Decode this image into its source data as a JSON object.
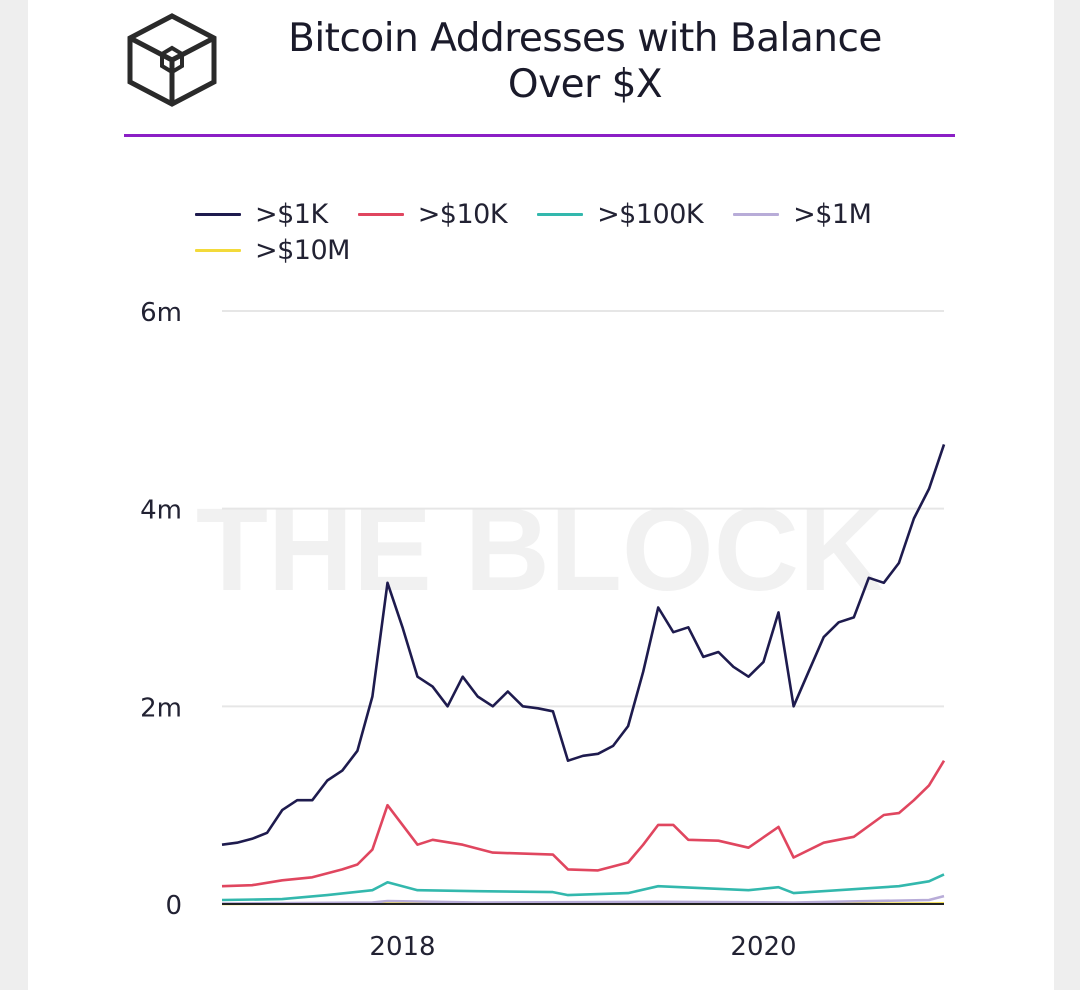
{
  "page": {
    "logo": "the-block-cube-logo",
    "title_line1": "Bitcoin Addresses with Balance",
    "title_line2": "Over $X",
    "watermark": "THE BLOCK",
    "colors": {
      "accent_rule": "#8b1fc5",
      "background": "#ffffff"
    }
  },
  "chart_data": {
    "type": "line",
    "title": "Bitcoin Addresses with Balance Over $X",
    "xlabel": "",
    "ylabel": "",
    "x_range": [
      "2017-01",
      "2021-01"
    ],
    "ylim": [
      0,
      6000000
    ],
    "y_ticks": [
      {
        "value": 0,
        "label": "0"
      },
      {
        "value": 2000000,
        "label": "2m"
      },
      {
        "value": 4000000,
        "label": "4m"
      },
      {
        "value": 6000000,
        "label": "6m"
      }
    ],
    "x_ticks": [
      {
        "value": "2018-01",
        "label": "2018"
      },
      {
        "value": "2020-01",
        "label": "2020"
      }
    ],
    "grid": "horizontal",
    "legend_position": "top-left",
    "series": [
      {
        "name": ">$1K",
        "color": "#1e1b4e",
        "points": [
          [
            "2017-01",
            600000
          ],
          [
            "2017-02",
            620000
          ],
          [
            "2017-03",
            660000
          ],
          [
            "2017-04",
            720000
          ],
          [
            "2017-05",
            950000
          ],
          [
            "2017-06",
            1050000
          ],
          [
            "2017-07",
            1050000
          ],
          [
            "2017-08",
            1250000
          ],
          [
            "2017-09",
            1350000
          ],
          [
            "2017-10",
            1550000
          ],
          [
            "2017-11",
            2100000
          ],
          [
            "2017-12",
            3250000
          ],
          [
            "2018-01",
            2800000
          ],
          [
            "2018-02",
            2300000
          ],
          [
            "2018-03",
            2200000
          ],
          [
            "2018-04",
            2000000
          ],
          [
            "2018-05",
            2300000
          ],
          [
            "2018-06",
            2100000
          ],
          [
            "2018-07",
            2000000
          ],
          [
            "2018-08",
            2150000
          ],
          [
            "2018-09",
            2000000
          ],
          [
            "2018-10",
            1980000
          ],
          [
            "2018-11",
            1950000
          ],
          [
            "2018-12",
            1450000
          ],
          [
            "2019-01",
            1500000
          ],
          [
            "2019-02",
            1520000
          ],
          [
            "2019-03",
            1600000
          ],
          [
            "2019-04",
            1800000
          ],
          [
            "2019-05",
            2350000
          ],
          [
            "2019-06",
            3000000
          ],
          [
            "2019-07",
            2750000
          ],
          [
            "2019-08",
            2800000
          ],
          [
            "2019-09",
            2500000
          ],
          [
            "2019-10",
            2550000
          ],
          [
            "2019-11",
            2400000
          ],
          [
            "2019-12",
            2300000
          ],
          [
            "2020-01",
            2450000
          ],
          [
            "2020-02",
            2950000
          ],
          [
            "2020-03",
            2000000
          ],
          [
            "2020-04",
            2350000
          ],
          [
            "2020-05",
            2700000
          ],
          [
            "2020-06",
            2850000
          ],
          [
            "2020-07",
            2900000
          ],
          [
            "2020-08",
            3300000
          ],
          [
            "2020-09",
            3250000
          ],
          [
            "2020-10",
            3450000
          ],
          [
            "2020-11",
            3900000
          ],
          [
            "2020-12",
            4200000
          ],
          [
            "2021-01",
            4650000
          ]
        ]
      },
      {
        "name": ">$10K",
        "color": "#e0465f",
        "points": [
          [
            "2017-01",
            180000
          ],
          [
            "2017-03",
            190000
          ],
          [
            "2017-05",
            240000
          ],
          [
            "2017-07",
            270000
          ],
          [
            "2017-09",
            350000
          ],
          [
            "2017-10",
            400000
          ],
          [
            "2017-11",
            550000
          ],
          [
            "2017-12",
            1000000
          ],
          [
            "2018-01",
            800000
          ],
          [
            "2018-02",
            600000
          ],
          [
            "2018-03",
            650000
          ],
          [
            "2018-05",
            600000
          ],
          [
            "2018-07",
            520000
          ],
          [
            "2018-09",
            510000
          ],
          [
            "2018-11",
            500000
          ],
          [
            "2018-12",
            350000
          ],
          [
            "2019-02",
            340000
          ],
          [
            "2019-04",
            420000
          ],
          [
            "2019-05",
            600000
          ],
          [
            "2019-06",
            800000
          ],
          [
            "2019-07",
            800000
          ],
          [
            "2019-08",
            650000
          ],
          [
            "2019-10",
            640000
          ],
          [
            "2019-12",
            570000
          ],
          [
            "2020-02",
            780000
          ],
          [
            "2020-03",
            470000
          ],
          [
            "2020-05",
            620000
          ],
          [
            "2020-07",
            680000
          ],
          [
            "2020-09",
            900000
          ],
          [
            "2020-10",
            920000
          ],
          [
            "2020-11",
            1050000
          ],
          [
            "2020-12",
            1200000
          ],
          [
            "2021-01",
            1450000
          ]
        ]
      },
      {
        "name": ">$100K",
        "color": "#33b8ad",
        "points": [
          [
            "2017-01",
            40000
          ],
          [
            "2017-05",
            50000
          ],
          [
            "2017-08",
            90000
          ],
          [
            "2017-11",
            140000
          ],
          [
            "2017-12",
            220000
          ],
          [
            "2018-02",
            140000
          ],
          [
            "2018-06",
            130000
          ],
          [
            "2018-11",
            120000
          ],
          [
            "2018-12",
            90000
          ],
          [
            "2019-04",
            110000
          ],
          [
            "2019-06",
            180000
          ],
          [
            "2019-09",
            160000
          ],
          [
            "2019-12",
            140000
          ],
          [
            "2020-02",
            170000
          ],
          [
            "2020-03",
            110000
          ],
          [
            "2020-07",
            150000
          ],
          [
            "2020-10",
            180000
          ],
          [
            "2020-12",
            230000
          ],
          [
            "2021-01",
            300000
          ]
        ]
      },
      {
        "name": ">$1M",
        "color": "#b8acd8",
        "points": [
          [
            "2017-01",
            5000
          ],
          [
            "2017-11",
            15000
          ],
          [
            "2017-12",
            30000
          ],
          [
            "2018-06",
            15000
          ],
          [
            "2019-06",
            22000
          ],
          [
            "2020-03",
            15000
          ],
          [
            "2020-12",
            40000
          ],
          [
            "2021-01",
            80000
          ]
        ]
      },
      {
        "name": ">$10M",
        "color": "#f3da3a",
        "points": [
          [
            "2017-01",
            1000
          ],
          [
            "2017-12",
            3000
          ],
          [
            "2019-06",
            2500
          ],
          [
            "2020-12",
            4000
          ],
          [
            "2021-01",
            6000
          ]
        ]
      }
    ]
  }
}
